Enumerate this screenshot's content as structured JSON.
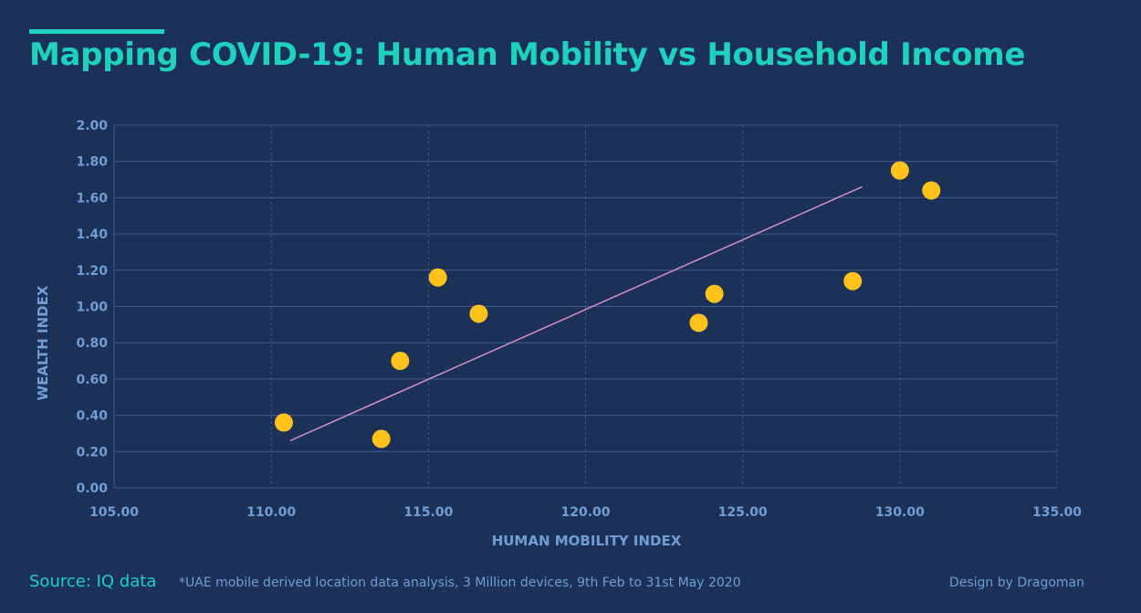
{
  "title": "Mapping COVID-19: Human Mobility vs Household Income",
  "footer": {
    "source": "Source: IQ data",
    "note": "*UAE mobile derived location data analysis, 3 Million devices, 9th Feb to 31st May 2020",
    "credit": "Design by Dragoman"
  },
  "colors": {
    "background": "#1b3158",
    "accent": "#1fd1c1",
    "points": "#ffc21c",
    "trendline": "#d78fc4",
    "axis_text": "#6f9fd6"
  },
  "chart_data": {
    "type": "scatter",
    "xlabel": "HUMAN MOBILITY INDEX",
    "ylabel": "WEALTH INDEX",
    "xlim": [
      105,
      135
    ],
    "ylim": [
      0,
      2
    ],
    "x_ticks": [
      "105.00",
      "110.00",
      "115.00",
      "120.00",
      "125.00",
      "130.00",
      "135.00"
    ],
    "y_ticks": [
      "0.00",
      "0.20",
      "0.40",
      "0.60",
      "0.80",
      "1.00",
      "1.20",
      "1.40",
      "1.60",
      "1.80",
      "2.00"
    ],
    "grid": true,
    "points": [
      {
        "x": 110.4,
        "y": 0.36
      },
      {
        "x": 113.5,
        "y": 0.27
      },
      {
        "x": 114.1,
        "y": 0.7
      },
      {
        "x": 115.3,
        "y": 1.16
      },
      {
        "x": 116.6,
        "y": 0.96
      },
      {
        "x": 123.6,
        "y": 0.91
      },
      {
        "x": 124.1,
        "y": 1.07
      },
      {
        "x": 128.5,
        "y": 1.14
      },
      {
        "x": 130.0,
        "y": 1.75
      },
      {
        "x": 131.0,
        "y": 1.64
      }
    ],
    "trendline": {
      "x": [
        110.6,
        128.8
      ],
      "y": [
        0.26,
        1.66
      ]
    }
  }
}
